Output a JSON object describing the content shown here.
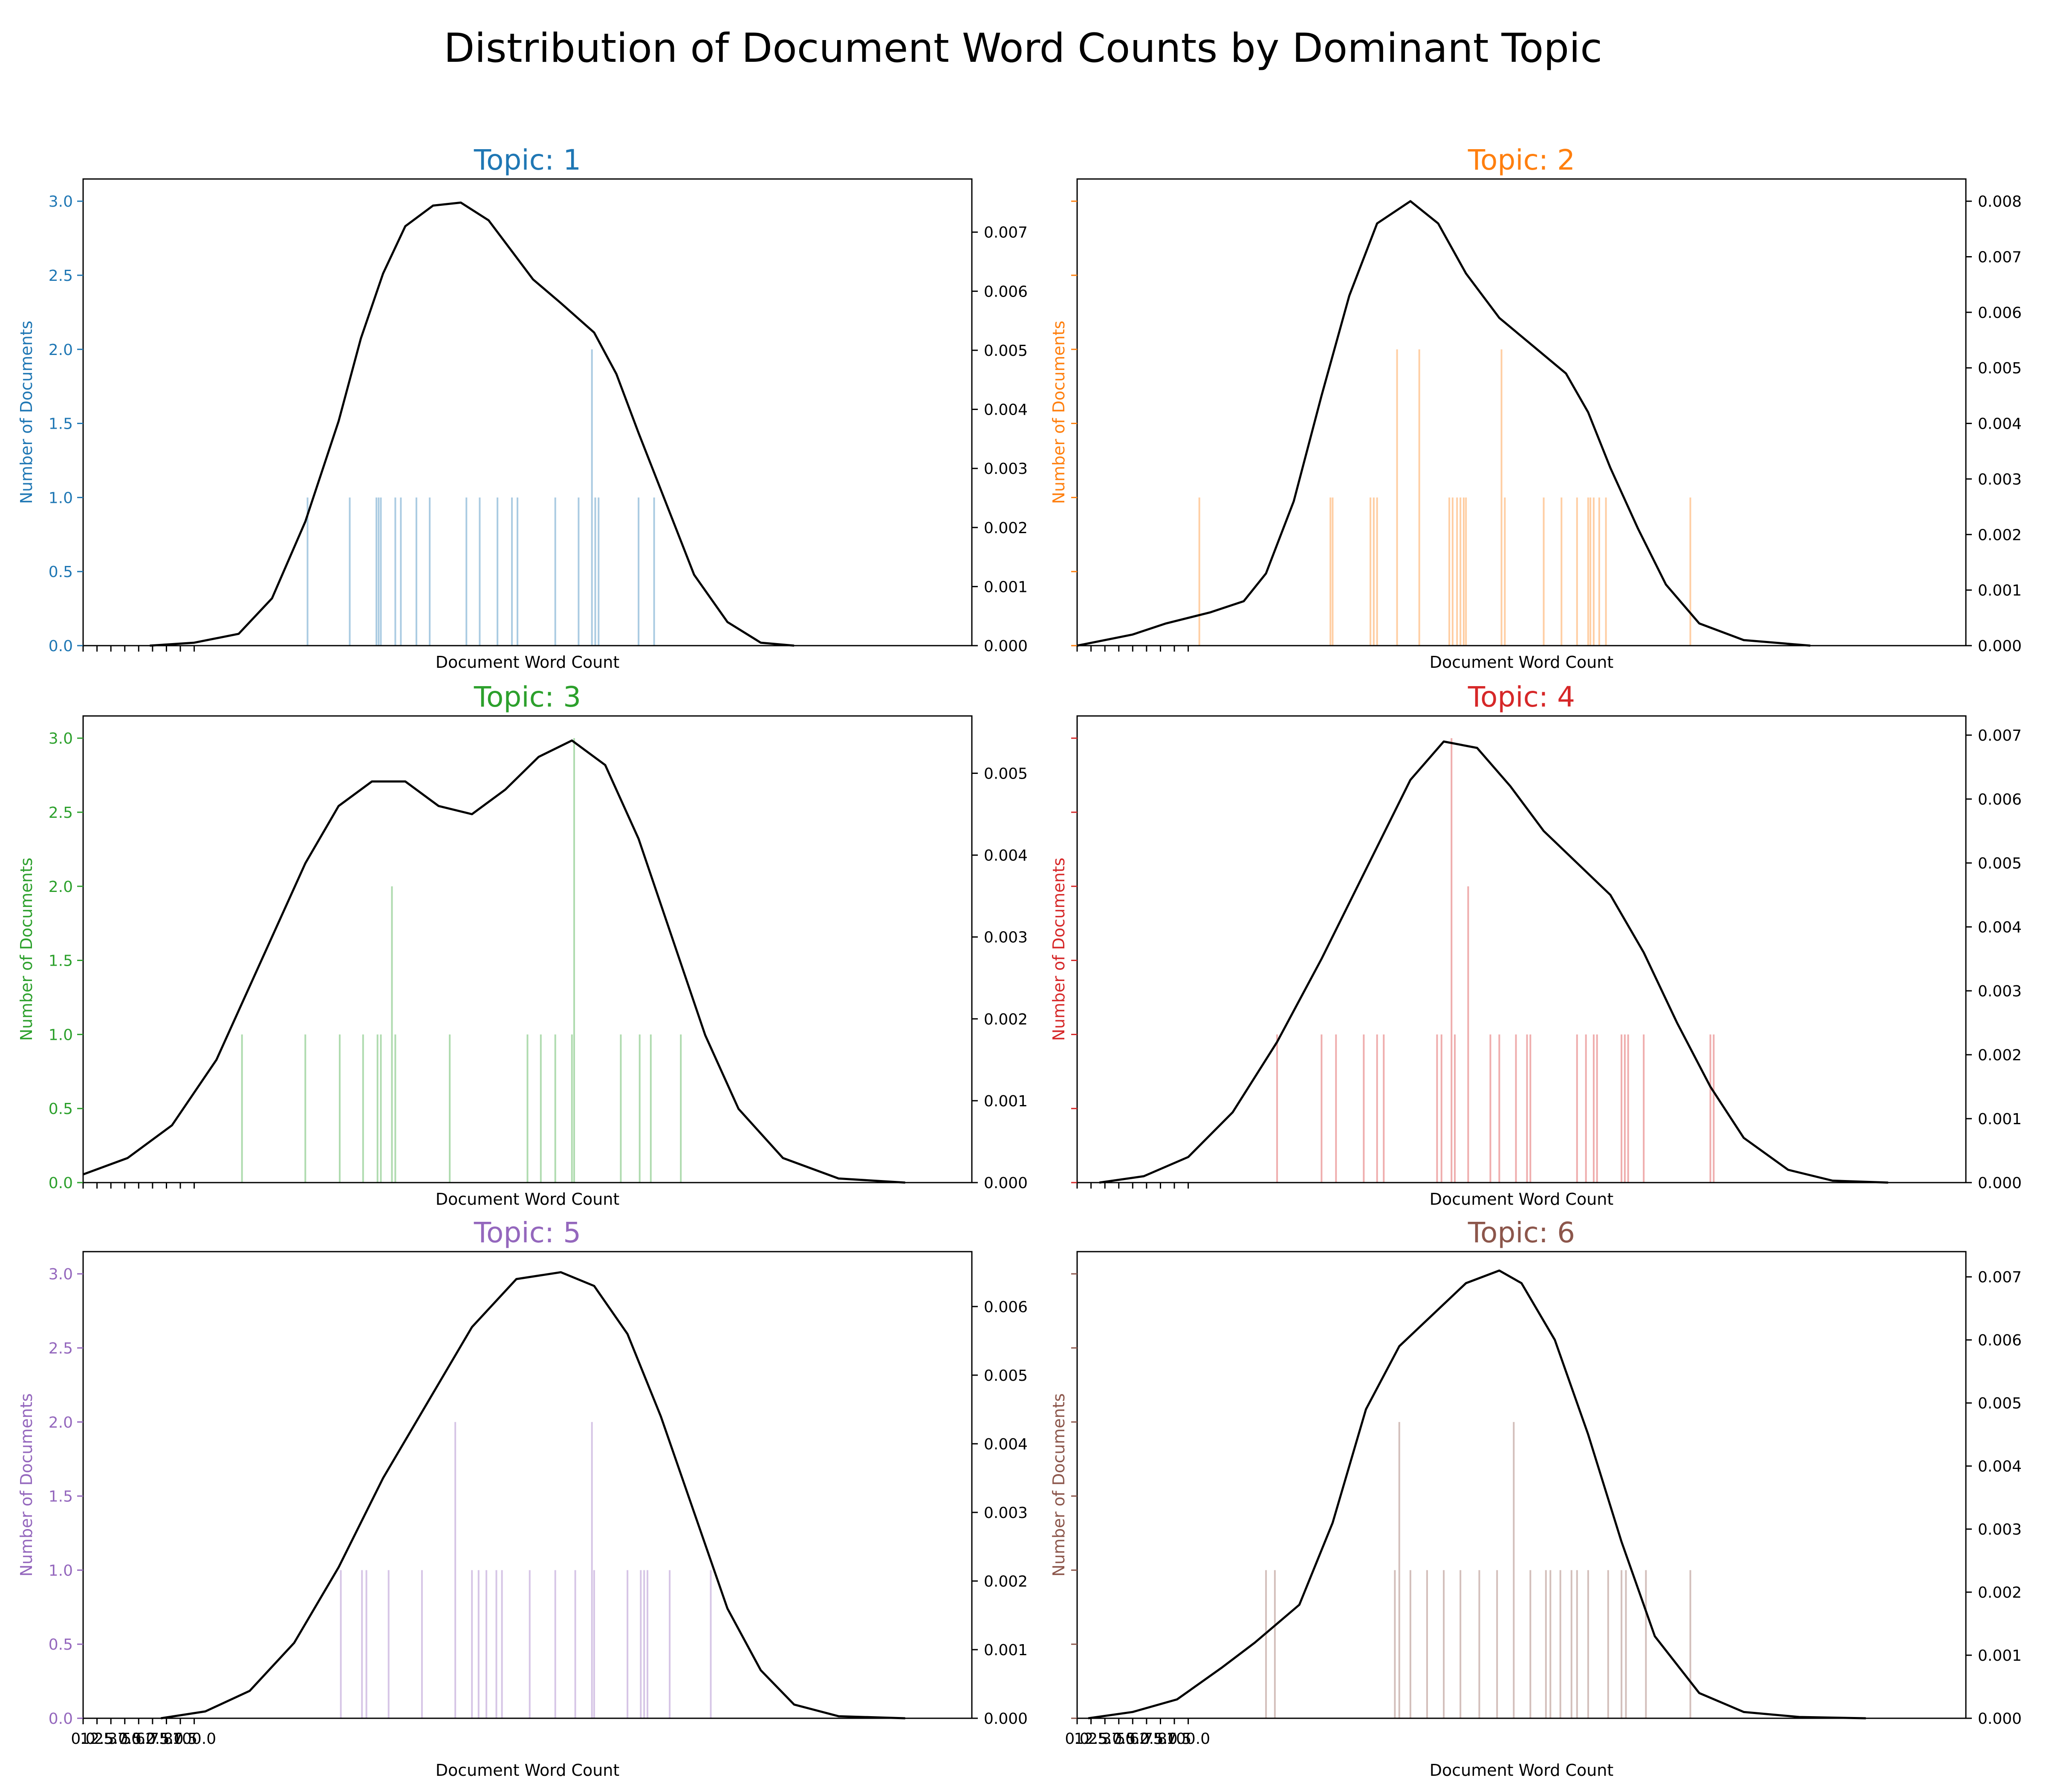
{
  "figure": {
    "title": "Distribution of Document Word Counts by Dominant Topic"
  },
  "chart_data": [
    {
      "type": "bar",
      "title": "Topic: 1",
      "color": "#1f77b4",
      "xlabel": "Document Word Count",
      "ylabel": "Number of Documents",
      "xlim": [
        0,
        800
      ],
      "ylim": [
        0,
        3.15
      ],
      "yticks": [
        "0.0",
        "0.5",
        "1.0",
        "1.5",
        "2.0",
        "2.5",
        "3.0"
      ],
      "y2lim": [
        0,
        0.0079
      ],
      "y2ticks": [
        "0.000",
        "0.001",
        "0.002",
        "0.003",
        "0.004",
        "0.005",
        "0.006",
        "0.007"
      ],
      "xticks": [],
      "bars": [
        [
          202,
          1
        ],
        [
          240,
          1
        ],
        [
          264,
          1
        ],
        [
          266,
          1
        ],
        [
          268,
          1
        ],
        [
          281,
          1
        ],
        [
          286,
          1
        ],
        [
          300,
          1
        ],
        [
          312,
          1
        ],
        [
          345,
          1
        ],
        [
          357,
          1
        ],
        [
          373,
          1
        ],
        [
          386,
          1
        ],
        [
          391,
          1
        ],
        [
          425,
          1
        ],
        [
          446,
          1
        ],
        [
          458,
          2
        ],
        [
          461,
          1
        ],
        [
          464,
          1
        ],
        [
          500,
          1
        ],
        [
          514,
          1
        ]
      ],
      "kde": [
        [
          60,
          0
        ],
        [
          100,
          5e-05
        ],
        [
          140,
          0.0002
        ],
        [
          170,
          0.0008
        ],
        [
          200,
          0.0021
        ],
        [
          230,
          0.0038
        ],
        [
          250,
          0.0052
        ],
        [
          270,
          0.0063
        ],
        [
          290,
          0.0071
        ],
        [
          315,
          0.00745
        ],
        [
          340,
          0.0075
        ],
        [
          365,
          0.0072
        ],
        [
          385,
          0.0067
        ],
        [
          405,
          0.0062
        ],
        [
          430,
          0.0058
        ],
        [
          460,
          0.0053
        ],
        [
          480,
          0.0046
        ],
        [
          500,
          0.0036
        ],
        [
          525,
          0.0024
        ],
        [
          550,
          0.0012
        ],
        [
          580,
          0.0004
        ],
        [
          610,
          5e-05
        ],
        [
          640,
          0
        ]
      ]
    },
    {
      "type": "bar",
      "title": "Topic: 2",
      "color": "#ff7f0e",
      "xlabel": "Document Word Count",
      "ylabel": "Number of Documents",
      "xlim": [
        0,
        800
      ],
      "ylim": [
        0,
        3.15
      ],
      "yticks": [],
      "y2lim": [
        0,
        0.0084
      ],
      "y2ticks": [
        "0.000",
        "0.001",
        "0.002",
        "0.003",
        "0.004",
        "0.005",
        "0.006",
        "0.007",
        "0.008"
      ],
      "xticks": [],
      "bars": [
        [
          110,
          1
        ],
        [
          228,
          1
        ],
        [
          230,
          1
        ],
        [
          264,
          1
        ],
        [
          267,
          1
        ],
        [
          270,
          1
        ],
        [
          288,
          2
        ],
        [
          308,
          2
        ],
        [
          335,
          1
        ],
        [
          338,
          1
        ],
        [
          342,
          1
        ],
        [
          345,
          1
        ],
        [
          348,
          1
        ],
        [
          350,
          1
        ],
        [
          382,
          2
        ],
        [
          385,
          1
        ],
        [
          420,
          1
        ],
        [
          436,
          1
        ],
        [
          450,
          1
        ],
        [
          460,
          1
        ],
        [
          462,
          1
        ],
        [
          465,
          1
        ],
        [
          470,
          1
        ],
        [
          476,
          1
        ],
        [
          552,
          1
        ]
      ],
      "kde": [
        [
          0,
          0
        ],
        [
          50,
          0.0002
        ],
        [
          80,
          0.0004
        ],
        [
          120,
          0.0006
        ],
        [
          150,
          0.0008
        ],
        [
          170,
          0.0013
        ],
        [
          195,
          0.0026
        ],
        [
          220,
          0.0045
        ],
        [
          245,
          0.0063
        ],
        [
          270,
          0.0076
        ],
        [
          300,
          0.008
        ],
        [
          325,
          0.0076
        ],
        [
          350,
          0.0067
        ],
        [
          380,
          0.0059
        ],
        [
          410,
          0.0054
        ],
        [
          440,
          0.0049
        ],
        [
          460,
          0.0042
        ],
        [
          480,
          0.0032
        ],
        [
          505,
          0.0021
        ],
        [
          530,
          0.0011
        ],
        [
          560,
          0.0004
        ],
        [
          600,
          0.0001
        ],
        [
          660,
          0
        ]
      ]
    },
    {
      "type": "bar",
      "title": "Topic: 3",
      "color": "#2ca02c",
      "xlabel": "Document Word Count",
      "ylabel": "Number of Documents",
      "xlim": [
        0,
        800
      ],
      "ylim": [
        0,
        3.15
      ],
      "yticks": [
        "0.0",
        "0.5",
        "1.0",
        "1.5",
        "2.0",
        "2.5",
        "3.0"
      ],
      "y2lim": [
        0,
        0.0057
      ],
      "y2ticks": [
        "0.000",
        "0.001",
        "0.002",
        "0.003",
        "0.004",
        "0.005"
      ],
      "xticks": [],
      "bars": [
        [
          143,
          1
        ],
        [
          200,
          1
        ],
        [
          231,
          1
        ],
        [
          252,
          1
        ],
        [
          265,
          1
        ],
        [
          268,
          1
        ],
        [
          278,
          2
        ],
        [
          281,
          1
        ],
        [
          330,
          1
        ],
        [
          400,
          1
        ],
        [
          412,
          1
        ],
        [
          425,
          1
        ],
        [
          440,
          1
        ],
        [
          442,
          3
        ],
        [
          484,
          1
        ],
        [
          501,
          1
        ],
        [
          511,
          1
        ],
        [
          538,
          1
        ]
      ],
      "kde": [
        [
          0,
          0.0001
        ],
        [
          40,
          0.0003
        ],
        [
          80,
          0.0007
        ],
        [
          120,
          0.0015
        ],
        [
          160,
          0.0027
        ],
        [
          200,
          0.0039
        ],
        [
          230,
          0.0046
        ],
        [
          260,
          0.0049
        ],
        [
          290,
          0.0049
        ],
        [
          320,
          0.0046
        ],
        [
          350,
          0.0045
        ],
        [
          380,
          0.0048
        ],
        [
          410,
          0.0052
        ],
        [
          440,
          0.0054
        ],
        [
          470,
          0.0051
        ],
        [
          500,
          0.0042
        ],
        [
          530,
          0.003
        ],
        [
          560,
          0.0018
        ],
        [
          590,
          0.0009
        ],
        [
          630,
          0.0003
        ],
        [
          680,
          5e-05
        ],
        [
          740,
          0
        ]
      ]
    },
    {
      "type": "bar",
      "title": "Topic: 4",
      "color": "#d62728",
      "xlabel": "Document Word Count",
      "ylabel": "Number of Documents",
      "xlim": [
        0,
        800
      ],
      "ylim": [
        0,
        3.15
      ],
      "yticks": [],
      "y2lim": [
        0,
        0.0073
      ],
      "y2ticks": [
        "0.000",
        "0.001",
        "0.002",
        "0.003",
        "0.004",
        "0.005",
        "0.006",
        "0.007"
      ],
      "xticks": [],
      "bars": [
        [
          180,
          1
        ],
        [
          220,
          1
        ],
        [
          233,
          1
        ],
        [
          258,
          1
        ],
        [
          270,
          1
        ],
        [
          276,
          1
        ],
        [
          324,
          1
        ],
        [
          328,
          1
        ],
        [
          337,
          3
        ],
        [
          340,
          1
        ],
        [
          352,
          2
        ],
        [
          372,
          1
        ],
        [
          380,
          1
        ],
        [
          395,
          1
        ],
        [
          405,
          1
        ],
        [
          408,
          1
        ],
        [
          450,
          1
        ],
        [
          458,
          1
        ],
        [
          465,
          1
        ],
        [
          468,
          1
        ],
        [
          490,
          1
        ],
        [
          493,
          1
        ],
        [
          496,
          1
        ],
        [
          510,
          1
        ],
        [
          570,
          1
        ],
        [
          573,
          1
        ]
      ],
      "kde": [
        [
          20,
          0
        ],
        [
          60,
          0.0001
        ],
        [
          100,
          0.0004
        ],
        [
          140,
          0.0011
        ],
        [
          180,
          0.0022
        ],
        [
          220,
          0.0035
        ],
        [
          260,
          0.0049
        ],
        [
          300,
          0.0063
        ],
        [
          330,
          0.0069
        ],
        [
          360,
          0.0068
        ],
        [
          390,
          0.0062
        ],
        [
          420,
          0.0055
        ],
        [
          450,
          0.005
        ],
        [
          480,
          0.0045
        ],
        [
          510,
          0.0036
        ],
        [
          540,
          0.0025
        ],
        [
          570,
          0.0015
        ],
        [
          600,
          0.0007
        ],
        [
          640,
          0.0002
        ],
        [
          680,
          3e-05
        ],
        [
          730,
          0
        ]
      ]
    },
    {
      "type": "bar",
      "title": "Topic: 5",
      "color": "#9467bd",
      "xlabel": "Document Word Count",
      "ylabel": "Number of Documents",
      "xlim": [
        0,
        800
      ],
      "ylim": [
        0,
        3.15
      ],
      "yticks": [
        "0.0",
        "0.5",
        "1.0",
        "1.5",
        "2.0",
        "2.5",
        "3.0"
      ],
      "y2lim": [
        0,
        0.0068
      ],
      "y2ticks": [
        "0.000",
        "0.001",
        "0.002",
        "0.003",
        "0.004",
        "0.005",
        "0.006"
      ],
      "xticks": [
        "0.0",
        "12.5",
        "25.0",
        "37.5",
        "50.0",
        "62.5",
        "75.0",
        "87.5",
        "100.0"
      ],
      "bars": [
        [
          232,
          1
        ],
        [
          251,
          1
        ],
        [
          255,
          1
        ],
        [
          275,
          1
        ],
        [
          305,
          1
        ],
        [
          335,
          2
        ],
        [
          350,
          1
        ],
        [
          356,
          1
        ],
        [
          363,
          1
        ],
        [
          372,
          1
        ],
        [
          377,
          1
        ],
        [
          402,
          1
        ],
        [
          425,
          1
        ],
        [
          443,
          1
        ],
        [
          458,
          2
        ],
        [
          460,
          1
        ],
        [
          490,
          1
        ],
        [
          502,
          1
        ],
        [
          505,
          1
        ],
        [
          508,
          1
        ],
        [
          528,
          1
        ],
        [
          565,
          1
        ]
      ],
      "kde": [
        [
          70,
          0
        ],
        [
          110,
          0.0001
        ],
        [
          150,
          0.0004
        ],
        [
          190,
          0.0011
        ],
        [
          230,
          0.0022
        ],
        [
          270,
          0.0035
        ],
        [
          310,
          0.0046
        ],
        [
          350,
          0.0057
        ],
        [
          390,
          0.0064
        ],
        [
          430,
          0.0065
        ],
        [
          460,
          0.0063
        ],
        [
          490,
          0.0056
        ],
        [
          520,
          0.0044
        ],
        [
          550,
          0.003
        ],
        [
          580,
          0.0016
        ],
        [
          610,
          0.0007
        ],
        [
          640,
          0.0002
        ],
        [
          680,
          3e-05
        ],
        [
          740,
          0
        ]
      ]
    },
    {
      "type": "bar",
      "title": "Topic: 6",
      "color": "#8c564b",
      "xlabel": "Document Word Count",
      "ylabel": "Number of Documents",
      "xlim": [
        0,
        800
      ],
      "ylim": [
        0,
        3.15
      ],
      "yticks": [],
      "y2lim": [
        0,
        0.0074
      ],
      "y2ticks": [
        "0.000",
        "0.001",
        "0.002",
        "0.003",
        "0.004",
        "0.005",
        "0.006",
        "0.007"
      ],
      "xticks": [
        "0.0",
        "12.5",
        "25.0",
        "37.5",
        "50.0",
        "62.5",
        "75.0",
        "87.5",
        "100.0"
      ],
      "bars": [
        [
          170,
          1
        ],
        [
          178,
          1
        ],
        [
          286,
          1
        ],
        [
          290,
          2
        ],
        [
          300,
          1
        ],
        [
          315,
          1
        ],
        [
          330,
          1
        ],
        [
          345,
          1
        ],
        [
          362,
          1
        ],
        [
          378,
          1
        ],
        [
          393,
          2
        ],
        [
          408,
          1
        ],
        [
          422,
          1
        ],
        [
          426,
          1
        ],
        [
          435,
          1
        ],
        [
          445,
          1
        ],
        [
          450,
          1
        ],
        [
          460,
          1
        ],
        [
          478,
          1
        ],
        [
          490,
          1
        ],
        [
          494,
          1
        ],
        [
          512,
          1
        ],
        [
          552,
          1
        ]
      ],
      "kde": [
        [
          10,
          0
        ],
        [
          50,
          0.0001
        ],
        [
          90,
          0.0003
        ],
        [
          130,
          0.0008
        ],
        [
          160,
          0.0012
        ],
        [
          200,
          0.0018
        ],
        [
          230,
          0.0031
        ],
        [
          260,
          0.0049
        ],
        [
          290,
          0.0059
        ],
        [
          320,
          0.0064
        ],
        [
          350,
          0.0069
        ],
        [
          380,
          0.0071
        ],
        [
          400,
          0.0069
        ],
        [
          430,
          0.006
        ],
        [
          460,
          0.0045
        ],
        [
          490,
          0.0028
        ],
        [
          520,
          0.0013
        ],
        [
          560,
          0.0004
        ],
        [
          600,
          0.0001
        ],
        [
          650,
          2e-05
        ],
        [
          710,
          0
        ]
      ]
    }
  ]
}
